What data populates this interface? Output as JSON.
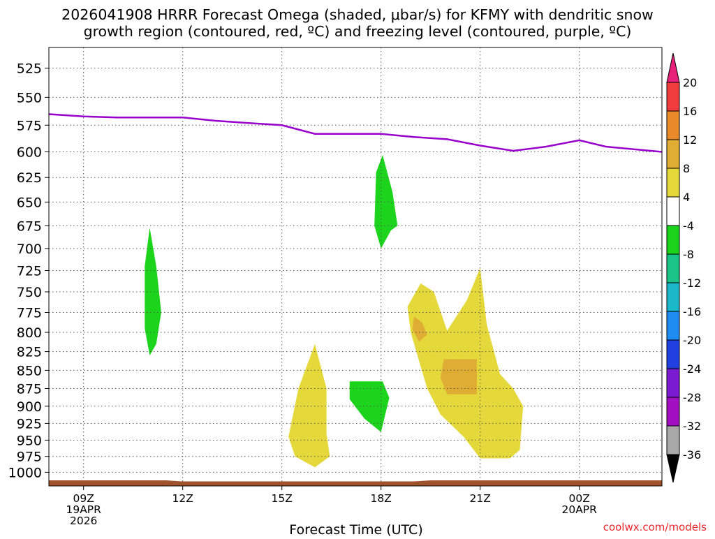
{
  "chart_data": {
    "type": "heatmap",
    "title_line1": "2026041908 HRRR Forecast Omega (shaded, μbar/s) for KFMY with dendritic snow",
    "title_line2": "growth region (contoured, red, ºC) and freezing level (contoured, purple, ºC)",
    "xlabel": "Forecast Time (UTC)",
    "ylabel": "",
    "credit": "coolwx.com/models",
    "x_range_hours": [
      7.95,
      26.5
    ],
    "y_range_hpa": [
      508,
      1022
    ],
    "y_scale": "log-pressure",
    "grid": true,
    "y_ticks": [
      525,
      550,
      575,
      600,
      625,
      650,
      675,
      700,
      725,
      750,
      775,
      800,
      825,
      850,
      875,
      900,
      925,
      950,
      975,
      1000
    ],
    "x_ticks": [
      {
        "hour": 9,
        "lines": [
          "09Z",
          "19APR",
          "2026"
        ]
      },
      {
        "hour": 12,
        "lines": [
          "12Z"
        ]
      },
      {
        "hour": 15,
        "lines": [
          "15Z"
        ]
      },
      {
        "hour": 18,
        "lines": [
          "18Z"
        ]
      },
      {
        "hour": 21,
        "lines": [
          "21Z"
        ]
      },
      {
        "hour": 24,
        "lines": [
          "00Z",
          "20APR"
        ]
      }
    ],
    "colorbar": {
      "labels": [
        "20",
        "16",
        "12",
        "8",
        "4",
        "-4",
        "-8",
        "-12",
        "-16",
        "-20",
        "-24",
        "-28",
        "-32",
        "-36"
      ],
      "bands": [
        {
          "low": 16,
          "high": 20,
          "color": "#f03c3c"
        },
        {
          "low": 12,
          "high": 16,
          "color": "#e8892a"
        },
        {
          "low": 8,
          "high": 12,
          "color": "#e0ad34"
        },
        {
          "low": 4,
          "high": 8,
          "color": "#e4d83a"
        },
        {
          "low": -4,
          "high": 4,
          "color": "#ffffff"
        },
        {
          "low": -8,
          "high": -4,
          "color": "#1cd41c"
        },
        {
          "low": -12,
          "high": -8,
          "color": "#19c486"
        },
        {
          "low": -16,
          "high": -12,
          "color": "#1ab8c8"
        },
        {
          "low": -20,
          "high": -16,
          "color": "#1e8cf0"
        },
        {
          "low": -24,
          "high": -20,
          "color": "#2040e0"
        },
        {
          "low": -28,
          "high": -24,
          "color": "#7a1ad0"
        },
        {
          "low": -32,
          "high": -28,
          "color": "#a010c0"
        },
        {
          "low": -36,
          "high": -32,
          "color": "#a8a8a8"
        }
      ],
      "top_arrow_color": "#e8207a",
      "bottom_arrow_color": "#000000"
    },
    "freezing_level": {
      "color": "#9900cc",
      "points": [
        [
          7.95,
          565
        ],
        [
          9,
          567
        ],
        [
          10,
          568
        ],
        [
          12,
          568
        ],
        [
          13,
          571
        ],
        [
          14,
          573
        ],
        [
          15,
          575
        ],
        [
          16,
          583
        ],
        [
          17,
          583
        ],
        [
          18,
          583
        ],
        [
          19,
          586
        ],
        [
          20,
          588
        ],
        [
          21,
          594
        ],
        [
          22,
          599
        ],
        [
          23,
          595
        ],
        [
          24,
          589
        ],
        [
          24.8,
          595
        ],
        [
          26.5,
          600
        ]
      ]
    },
    "shaded_regions": [
      {
        "name": "green-area-1",
        "color": "#1cd41c",
        "points": [
          [
            11.0,
            677
          ],
          [
            11.2,
            720
          ],
          [
            11.35,
            775
          ],
          [
            11.2,
            815
          ],
          [
            11.0,
            830
          ],
          [
            10.85,
            795
          ],
          [
            10.85,
            720
          ]
        ]
      },
      {
        "name": "green-area-2",
        "color": "#1cd41c",
        "points": [
          [
            18.05,
            603
          ],
          [
            18.35,
            640
          ],
          [
            18.5,
            675
          ],
          [
            18.3,
            680
          ],
          [
            18.0,
            700
          ],
          [
            17.8,
            675
          ],
          [
            17.85,
            620
          ]
        ]
      },
      {
        "name": "green-area-3",
        "color": "#1cd41c",
        "points": [
          [
            17.05,
            865
          ],
          [
            18.05,
            865
          ],
          [
            18.25,
            888
          ],
          [
            18.0,
            938
          ],
          [
            17.5,
            918
          ],
          [
            17.05,
            890
          ]
        ]
      },
      {
        "name": "yellow-area-1",
        "color": "#e4d83a",
        "points": [
          [
            16.0,
            815
          ],
          [
            16.35,
            875
          ],
          [
            16.35,
            940
          ],
          [
            16.45,
            975
          ],
          [
            16.0,
            992
          ],
          [
            15.4,
            975
          ],
          [
            15.2,
            945
          ],
          [
            15.5,
            875
          ]
        ]
      },
      {
        "name": "yellow-area-2",
        "color": "#e4d83a",
        "points": [
          [
            18.8,
            768
          ],
          [
            19.2,
            740
          ],
          [
            19.6,
            750
          ],
          [
            20.0,
            798
          ],
          [
            20.6,
            760
          ],
          [
            21.0,
            722
          ],
          [
            21.2,
            790
          ],
          [
            21.6,
            855
          ],
          [
            22.0,
            875
          ],
          [
            22.3,
            900
          ],
          [
            22.2,
            965
          ],
          [
            21.9,
            978
          ],
          [
            21.0,
            978
          ],
          [
            20.5,
            945
          ],
          [
            19.8,
            912
          ],
          [
            19.4,
            875
          ],
          [
            19.2,
            845
          ],
          [
            18.9,
            800
          ]
        ]
      },
      {
        "name": "orange-area-1",
        "color": "#e0ad34",
        "points": [
          [
            19.0,
            780
          ],
          [
            19.25,
            788
          ],
          [
            19.4,
            803
          ],
          [
            19.15,
            812
          ],
          [
            18.95,
            796
          ]
        ]
      },
      {
        "name": "orange-area-2",
        "color": "#e0ad34",
        "points": [
          [
            19.9,
            835
          ],
          [
            20.9,
            835
          ],
          [
            20.9,
            883
          ],
          [
            20.0,
            883
          ],
          [
            19.8,
            860
          ]
        ]
      }
    ],
    "ground": {
      "color": "#a0522d",
      "top_left_hpa": 1013,
      "bottom_hpa": 1022
    }
  }
}
